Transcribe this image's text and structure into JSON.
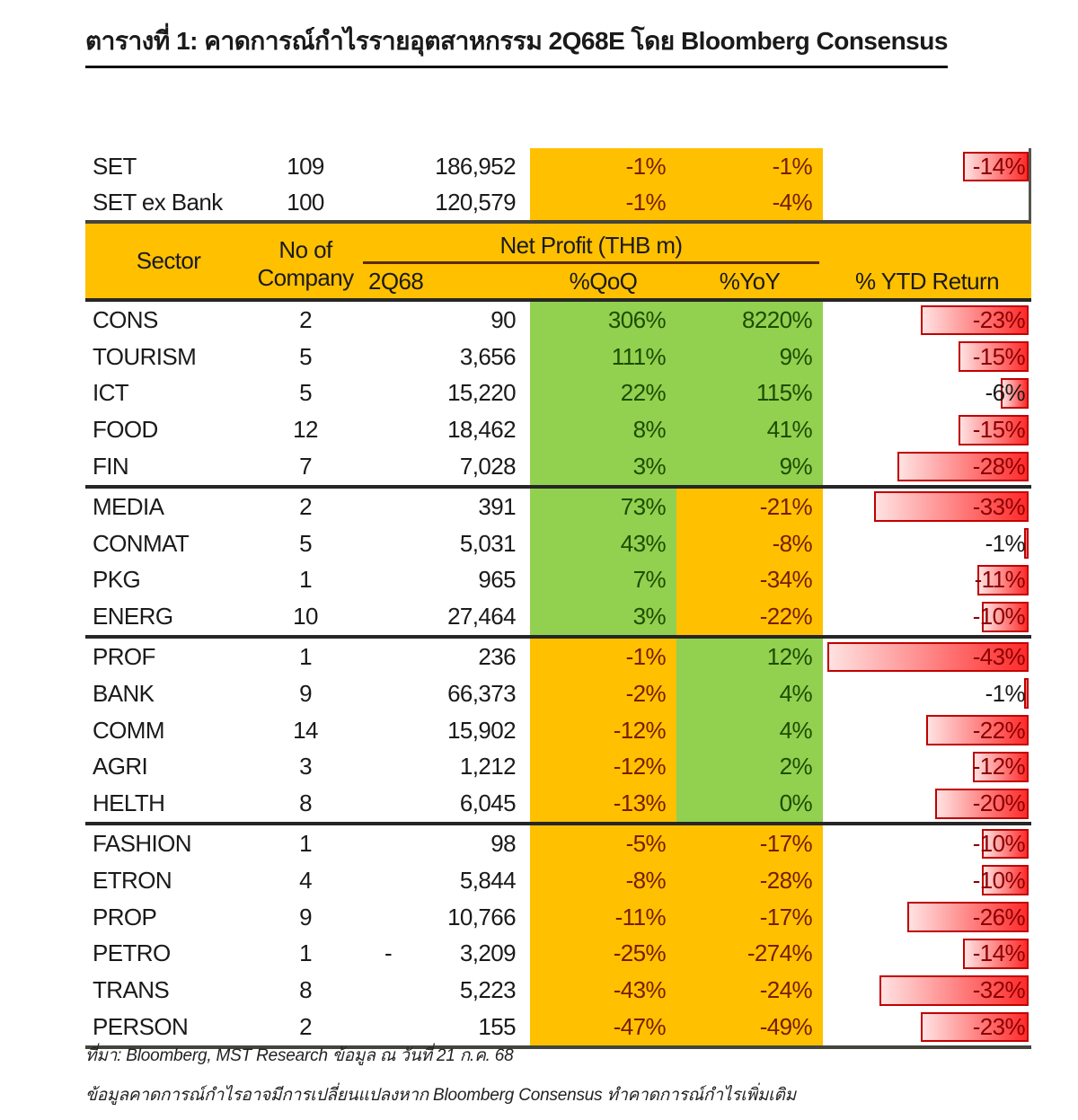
{
  "title": "ตารางที่ 1: คาดการณ์กำไรรายอุตสาหกรรม 2Q68E โดย Bloomberg Consensus",
  "header": {
    "sector": "Sector",
    "no_of_line1": "No of",
    "no_of_line2": "Company",
    "net_profit_group": "Net Profit (THB m)",
    "col_2q68": "2Q68",
    "col_qoq": "%QoQ",
    "col_yoy": "%YoY",
    "col_ytd": "% YTD Return"
  },
  "summary_rows": [
    {
      "sector": "SET",
      "companies": "109",
      "profit": "186,952",
      "profit_neg": false,
      "qoq": "-1%",
      "qoq_bg": "gold",
      "yoy": "-1%",
      "yoy_bg": "gold",
      "ytd": "-14%",
      "ytd_value": -14
    },
    {
      "sector": "SET ex Bank",
      "companies": "100",
      "profit": "120,579",
      "profit_neg": false,
      "qoq": "-1%",
      "qoq_bg": "gold",
      "yoy": "-4%",
      "yoy_bg": "gold",
      "ytd": "",
      "ytd_value": null
    }
  ],
  "groups": [
    {
      "rows": [
        {
          "sector": "CONS",
          "companies": "2",
          "profit": "90",
          "profit_neg": false,
          "qoq": "306%",
          "qoq_bg": "green",
          "yoy": "8220%",
          "yoy_bg": "green",
          "ytd": "-23%",
          "ytd_value": -23
        },
        {
          "sector": "TOURISM",
          "companies": "5",
          "profit": "3,656",
          "profit_neg": false,
          "qoq": "111%",
          "qoq_bg": "green",
          "yoy": "9%",
          "yoy_bg": "green",
          "ytd": "-15%",
          "ytd_value": -15
        },
        {
          "sector": "ICT",
          "companies": "5",
          "profit": "15,220",
          "profit_neg": false,
          "qoq": "22%",
          "qoq_bg": "green",
          "yoy": "115%",
          "yoy_bg": "green",
          "ytd": "-6%",
          "ytd_value": -6
        },
        {
          "sector": "FOOD",
          "companies": "12",
          "profit": "18,462",
          "profit_neg": false,
          "qoq": "8%",
          "qoq_bg": "green",
          "yoy": "41%",
          "yoy_bg": "green",
          "ytd": "-15%",
          "ytd_value": -15
        },
        {
          "sector": "FIN",
          "companies": "7",
          "profit": "7,028",
          "profit_neg": false,
          "qoq": "3%",
          "qoq_bg": "green",
          "yoy": "9%",
          "yoy_bg": "green",
          "ytd": "-28%",
          "ytd_value": -28
        }
      ]
    },
    {
      "rows": [
        {
          "sector": "MEDIA",
          "companies": "2",
          "profit": "391",
          "profit_neg": false,
          "qoq": "73%",
          "qoq_bg": "green",
          "yoy": "-21%",
          "yoy_bg": "gold",
          "ytd": "-33%",
          "ytd_value": -33
        },
        {
          "sector": "CONMAT",
          "companies": "5",
          "profit": "5,031",
          "profit_neg": false,
          "qoq": "43%",
          "qoq_bg": "green",
          "yoy": "-8%",
          "yoy_bg": "gold",
          "ytd": "-1%",
          "ytd_value": -1
        },
        {
          "sector": "PKG",
          "companies": "1",
          "profit": "965",
          "profit_neg": false,
          "qoq": "7%",
          "qoq_bg": "green",
          "yoy": "-34%",
          "yoy_bg": "gold",
          "ytd": "-11%",
          "ytd_value": -11
        },
        {
          "sector": "ENERG",
          "companies": "10",
          "profit": "27,464",
          "profit_neg": false,
          "qoq": "3%",
          "qoq_bg": "green",
          "yoy": "-22%",
          "yoy_bg": "gold",
          "ytd": "-10%",
          "ytd_value": -10
        }
      ]
    },
    {
      "rows": [
        {
          "sector": "PROF",
          "companies": "1",
          "profit": "236",
          "profit_neg": false,
          "qoq": "-1%",
          "qoq_bg": "gold",
          "yoy": "12%",
          "yoy_bg": "green",
          "ytd": "-43%",
          "ytd_value": -43
        },
        {
          "sector": "BANK",
          "companies": "9",
          "profit": "66,373",
          "profit_neg": false,
          "qoq": "-2%",
          "qoq_bg": "gold",
          "yoy": "4%",
          "yoy_bg": "green",
          "ytd": "-1%",
          "ytd_value": -1
        },
        {
          "sector": "COMM",
          "companies": "14",
          "profit": "15,902",
          "profit_neg": false,
          "qoq": "-12%",
          "qoq_bg": "gold",
          "yoy": "4%",
          "yoy_bg": "green",
          "ytd": "-22%",
          "ytd_value": -22
        },
        {
          "sector": "AGRI",
          "companies": "3",
          "profit": "1,212",
          "profit_neg": false,
          "qoq": "-12%",
          "qoq_bg": "gold",
          "yoy": "2%",
          "yoy_bg": "green",
          "ytd": "-12%",
          "ytd_value": -12
        },
        {
          "sector": "HELTH",
          "companies": "8",
          "profit": "6,045",
          "profit_neg": false,
          "qoq": "-13%",
          "qoq_bg": "gold",
          "yoy": "0%",
          "yoy_bg": "green",
          "ytd": "-20%",
          "ytd_value": -20
        }
      ]
    },
    {
      "rows": [
        {
          "sector": "FASHION",
          "companies": "1",
          "profit": "98",
          "profit_neg": false,
          "qoq": "-5%",
          "qoq_bg": "gold",
          "yoy": "-17%",
          "yoy_bg": "gold",
          "ytd": "-10%",
          "ytd_value": -10
        },
        {
          "sector": "ETRON",
          "companies": "4",
          "profit": "5,844",
          "profit_neg": false,
          "qoq": "-8%",
          "qoq_bg": "gold",
          "yoy": "-28%",
          "yoy_bg": "gold",
          "ytd": "-10%",
          "ytd_value": -10
        },
        {
          "sector": "PROP",
          "companies": "9",
          "profit": "10,766",
          "profit_neg": false,
          "qoq": "-11%",
          "qoq_bg": "gold",
          "yoy": "-17%",
          "yoy_bg": "gold",
          "ytd": "-26%",
          "ytd_value": -26
        },
        {
          "sector": "PETRO",
          "companies": "1",
          "profit": "3,209",
          "profit_neg": true,
          "qoq": "-25%",
          "qoq_bg": "gold",
          "yoy": "-274%",
          "yoy_bg": "gold",
          "ytd": "-14%",
          "ytd_value": -14
        },
        {
          "sector": "TRANS",
          "companies": "8",
          "profit": "5,223",
          "profit_neg": false,
          "qoq": "-43%",
          "qoq_bg": "gold",
          "yoy": "-24%",
          "yoy_bg": "gold",
          "ytd": "-32%",
          "ytd_value": -32
        },
        {
          "sector": "PERSON",
          "companies": "2",
          "profit": "155",
          "profit_neg": false,
          "qoq": "-47%",
          "qoq_bg": "gold",
          "yoy": "-49%",
          "yoy_bg": "gold",
          "ytd": "-23%",
          "ytd_value": -23
        }
      ]
    }
  ],
  "footer": {
    "source": "ที่มา:   Bloomberg, MST Research ข้อมูล ณ วันที่ 21 ก.ค. 68",
    "note": "ข้อมูลคาดการณ์กำไรอาจมีการเปลี่ยนแปลงหาก Bloomberg Consensus ทำคาดการณ์กำไรเพิ่มเติม"
  },
  "colors": {
    "header_gold": "#ffc000",
    "cell_green": "#92d050",
    "cell_gold": "#ffc000",
    "green_text": "#1d4d00",
    "gold_text": "#7a1b00",
    "bar_red": "#ff2a2a",
    "bar_border": "#c00000",
    "negative_text": "#8b0000"
  }
}
